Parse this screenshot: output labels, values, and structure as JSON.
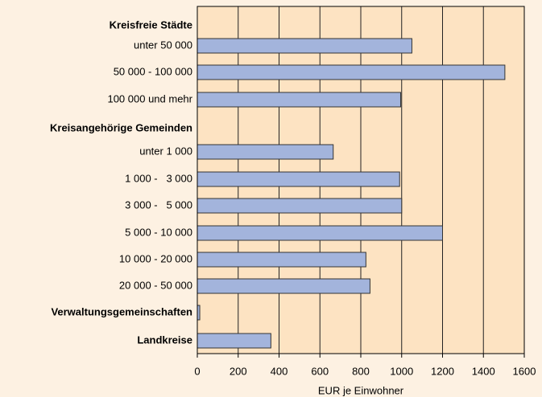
{
  "chart_data": {
    "type": "bar",
    "orientation": "horizontal",
    "categories": [
      "Kreisfreie Städte",
      "unter 50 000",
      "50 000 - 100 000",
      "100 000 und mehr",
      "Kreisangehörige Gemeinden",
      "unter 1 000",
      "1 000 -   3 000",
      "3 000 -   5 000",
      "5 000 - 10 000",
      "10 000 - 20 000",
      "20 000 - 50 000",
      "Verwaltungsgemeinschaften",
      "Landkreise"
    ],
    "values": [
      null,
      1050,
      1505,
      995,
      null,
      665,
      990,
      1000,
      1200,
      825,
      845,
      12,
      360
    ],
    "color": "#a3b4dc",
    "xlim": [
      0,
      1600
    ],
    "xticks": [
      0,
      200,
      400,
      600,
      800,
      1000,
      1200,
      1400,
      1600
    ],
    "x_label": "EUR je Einwohner",
    "grid": true
  }
}
